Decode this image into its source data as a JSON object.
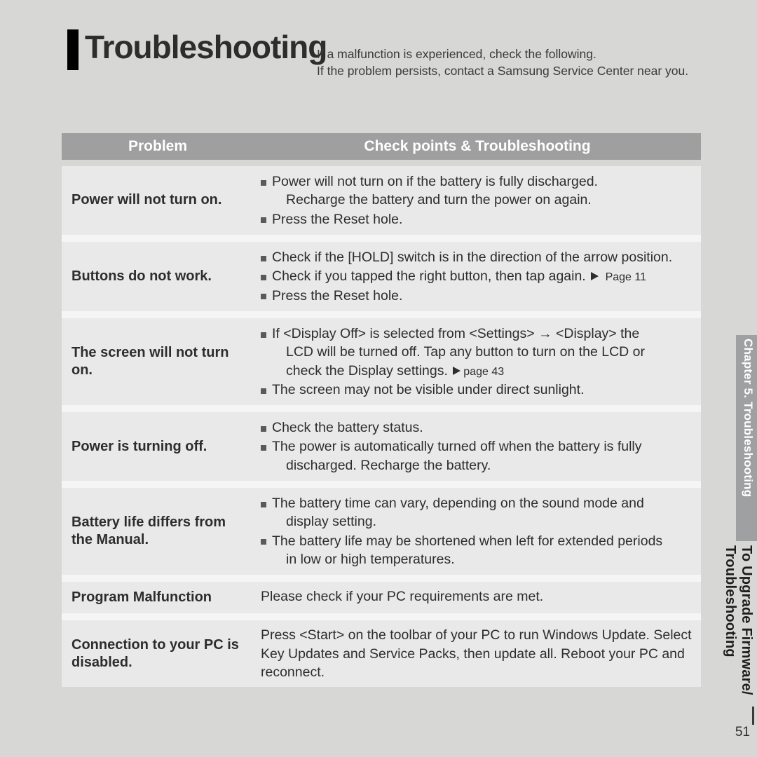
{
  "title": "Troubleshooting",
  "intro_line1": "If a malfunction is experienced, check the following.",
  "intro_line2": "If the problem persists, contact a Samsung Service Center near you.",
  "table": {
    "header": {
      "problem": "Problem",
      "check": "Check points & Troubleshooting"
    },
    "rows": [
      {
        "problem": "Power will not turn on.",
        "items": [
          {
            "text": "Power will not turn on if the battery is fully discharged.",
            "cont": "Recharge the battery and turn the power on again."
          },
          {
            "text": "Press the Reset hole."
          }
        ]
      },
      {
        "problem": "Buttons do not work.",
        "items": [
          {
            "text": "Check if the [HOLD] switch is in the direction of the arrow position."
          },
          {
            "text": "Check if you tapped the right button, then tap again.",
            "page_ref": "Page 11"
          },
          {
            "text": "Press the Reset hole."
          }
        ]
      },
      {
        "problem": "The screen will not turn on.",
        "items": [
          {
            "text": "If <Display Off> is selected from <Settings> → <Display> the",
            "cont": "LCD will be turned off. Tap any button to turn on the LCD or",
            "cont2_with_ref": "check the Display settings.",
            "page_ref": "page 43"
          },
          {
            "text": "The screen may not be visible under direct sunlight."
          }
        ]
      },
      {
        "problem": "Power is turning off.",
        "items": [
          {
            "text": "Check the battery status."
          },
          {
            "text": "The power is automatically turned off when the battery is fully",
            "cont": "discharged. Recharge the battery."
          }
        ]
      },
      {
        "problem": "Battery life differs from the Manual.",
        "items": [
          {
            "text": "The battery time can vary, depending on the sound mode and",
            "cont": "display setting."
          },
          {
            "text": "The battery life may be shortened when left for extended periods",
            "cont": "in low or high temperatures."
          }
        ]
      },
      {
        "problem": "Program Malfunction",
        "plain": "Please check if your PC requirements are met."
      },
      {
        "problem": "Connection to your PC is disabled.",
        "plain": "Press <Start> on the toolbar of your PC to run Windows Update. Select Key Updates and Service Packs, then update all. Reboot your PC and reconnect."
      }
    ]
  },
  "side": {
    "chapter": "Chapter 5. Troubleshooting",
    "topic_a": "To Upgrade Firmware/",
    "topic_b": "Troubleshooting"
  },
  "page_number": "51"
}
